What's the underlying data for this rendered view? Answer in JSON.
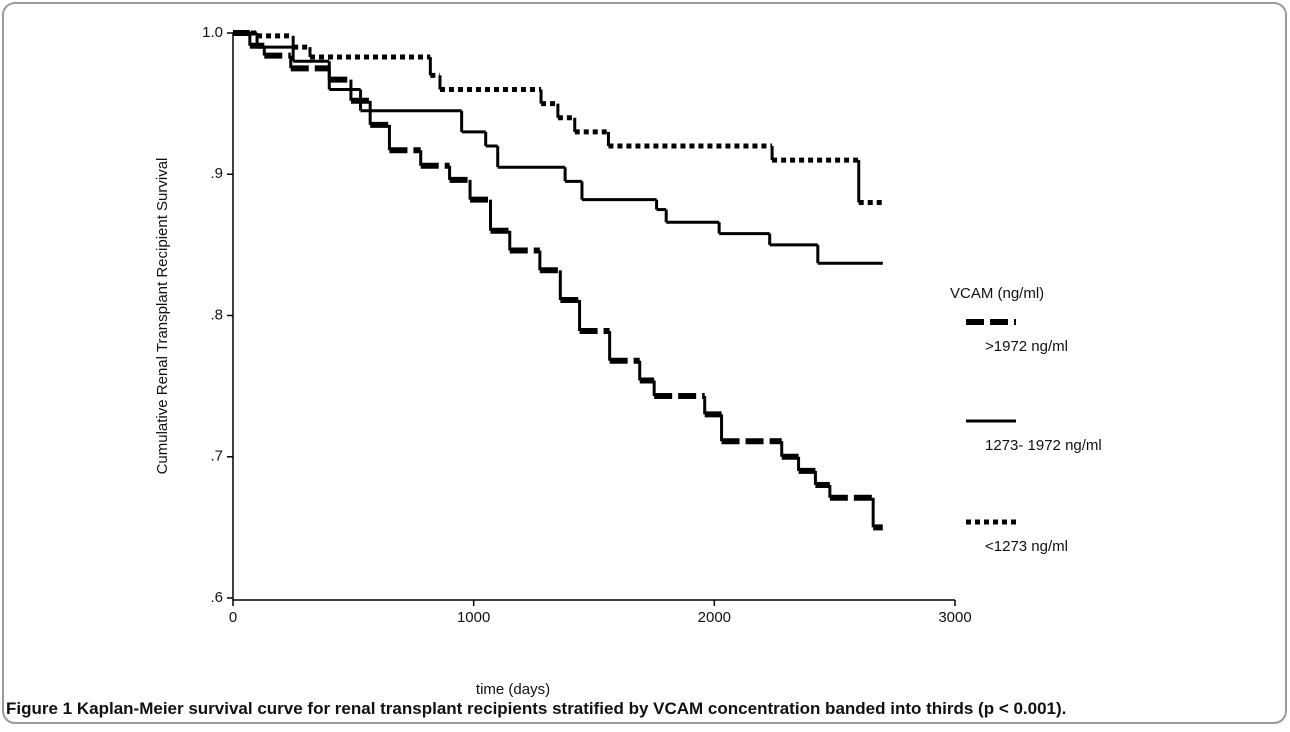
{
  "chart_data": {
    "type": "step",
    "ylabel": "Cumulative Renal Transplant Recipient Survival",
    "xlabel": "time (days)",
    "legend_title": "VCAM (ng/ml)",
    "caption_label": "Figure 1",
    "caption": "Kaplan-Meier survival curve for renal transplant recipients stratified by VCAM concentration banded into thirds (p < 0.001).",
    "xlim": [
      0,
      3000
    ],
    "xticks": [
      0,
      1000,
      2000,
      3000
    ],
    "ylim": [
      0.6,
      1.0
    ],
    "yticks": [
      {
        "value": 0.6,
        "label": ".6"
      },
      {
        "value": 0.7,
        "label": ".7"
      },
      {
        "value": 0.8,
        "label": ".8"
      },
      {
        "value": 0.9,
        "label": ".9"
      },
      {
        "value": 1.0,
        "label": "1.0"
      }
    ],
    "series": [
      {
        "name": ">1972 ng/ml",
        "color": "#000000",
        "style": "dashed",
        "x": [
          0,
          70,
          130,
          240,
          400,
          490,
          570,
          650,
          780,
          900,
          985,
          1070,
          1150,
          1275,
          1360,
          1440,
          1565,
          1690,
          1750,
          1960,
          2030,
          2230,
          2280,
          2350,
          2420,
          2480,
          2660,
          2700
        ],
        "values": [
          1.0,
          0.991,
          0.984,
          0.975,
          0.967,
          0.952,
          0.935,
          0.917,
          0.906,
          0.896,
          0.882,
          0.86,
          0.846,
          0.832,
          0.811,
          0.789,
          0.768,
          0.754,
          0.743,
          0.73,
          0.711,
          0.711,
          0.7,
          0.69,
          0.68,
          0.671,
          0.65,
          0.65
        ]
      },
      {
        "name": "1273- 1972 ng/ml",
        "color": "#000000",
        "style": "solid",
        "x": [
          0,
          100,
          250,
          400,
          530,
          950,
          1050,
          1100,
          1380,
          1450,
          1760,
          1800,
          2020,
          2230,
          2430,
          2700
        ],
        "values": [
          1.0,
          0.99,
          0.98,
          0.96,
          0.945,
          0.93,
          0.92,
          0.905,
          0.895,
          0.882,
          0.875,
          0.866,
          0.858,
          0.85,
          0.837,
          0.837
        ]
      },
      {
        "name": "<1273 ng/ml",
        "color": "#000000",
        "style": "dotted",
        "x": [
          0,
          100,
          250,
          320,
          820,
          860,
          1280,
          1350,
          1420,
          1560,
          2240,
          2600,
          2700
        ],
        "values": [
          1.0,
          0.998,
          0.99,
          0.983,
          0.97,
          0.96,
          0.95,
          0.94,
          0.93,
          0.92,
          0.91,
          0.88,
          0.88
        ]
      }
    ]
  }
}
